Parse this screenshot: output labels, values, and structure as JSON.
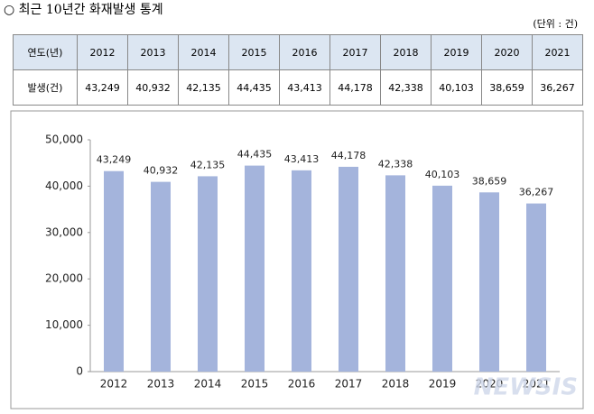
{
  "header": {
    "title": "최근 10년간 화재발생 통계",
    "unit": "(단위 : 건)"
  },
  "table": {
    "rows": [
      [
        "연도(년)",
        "2012",
        "2013",
        "2014",
        "2015",
        "2016",
        "2017",
        "2018",
        "2019",
        "2020",
        "2021"
      ],
      [
        "발생(건)",
        "43,249",
        "40,932",
        "42,135",
        "44,435",
        "43,413",
        "44,178",
        "42,338",
        "40,103",
        "38,659",
        "36,267"
      ]
    ]
  },
  "chart_data": {
    "type": "bar",
    "categories": [
      "2012",
      "2013",
      "2014",
      "2015",
      "2016",
      "2017",
      "2018",
      "2019",
      "2020",
      "2021"
    ],
    "values": [
      43249,
      40932,
      42135,
      44435,
      43413,
      44178,
      42338,
      40103,
      38659,
      36267
    ],
    "value_labels": [
      "43,249",
      "40,932",
      "42,135",
      "44,435",
      "43,413",
      "44,178",
      "42,338",
      "40,103",
      "38,659",
      "36,267"
    ],
    "color": "#a4b4dc",
    "ylim": [
      0,
      50000
    ],
    "yticks": [
      0,
      {
        "value": 10000,
        "label": "10,000"
      },
      {
        "value": 20000,
        "label": "20,000"
      },
      {
        "value": 30000,
        "label": "30,000"
      },
      {
        "value": 40000,
        "label": "40,000"
      },
      {
        "value": 50000,
        "label": "50,000"
      }
    ]
  },
  "watermark": "NEWSIS"
}
